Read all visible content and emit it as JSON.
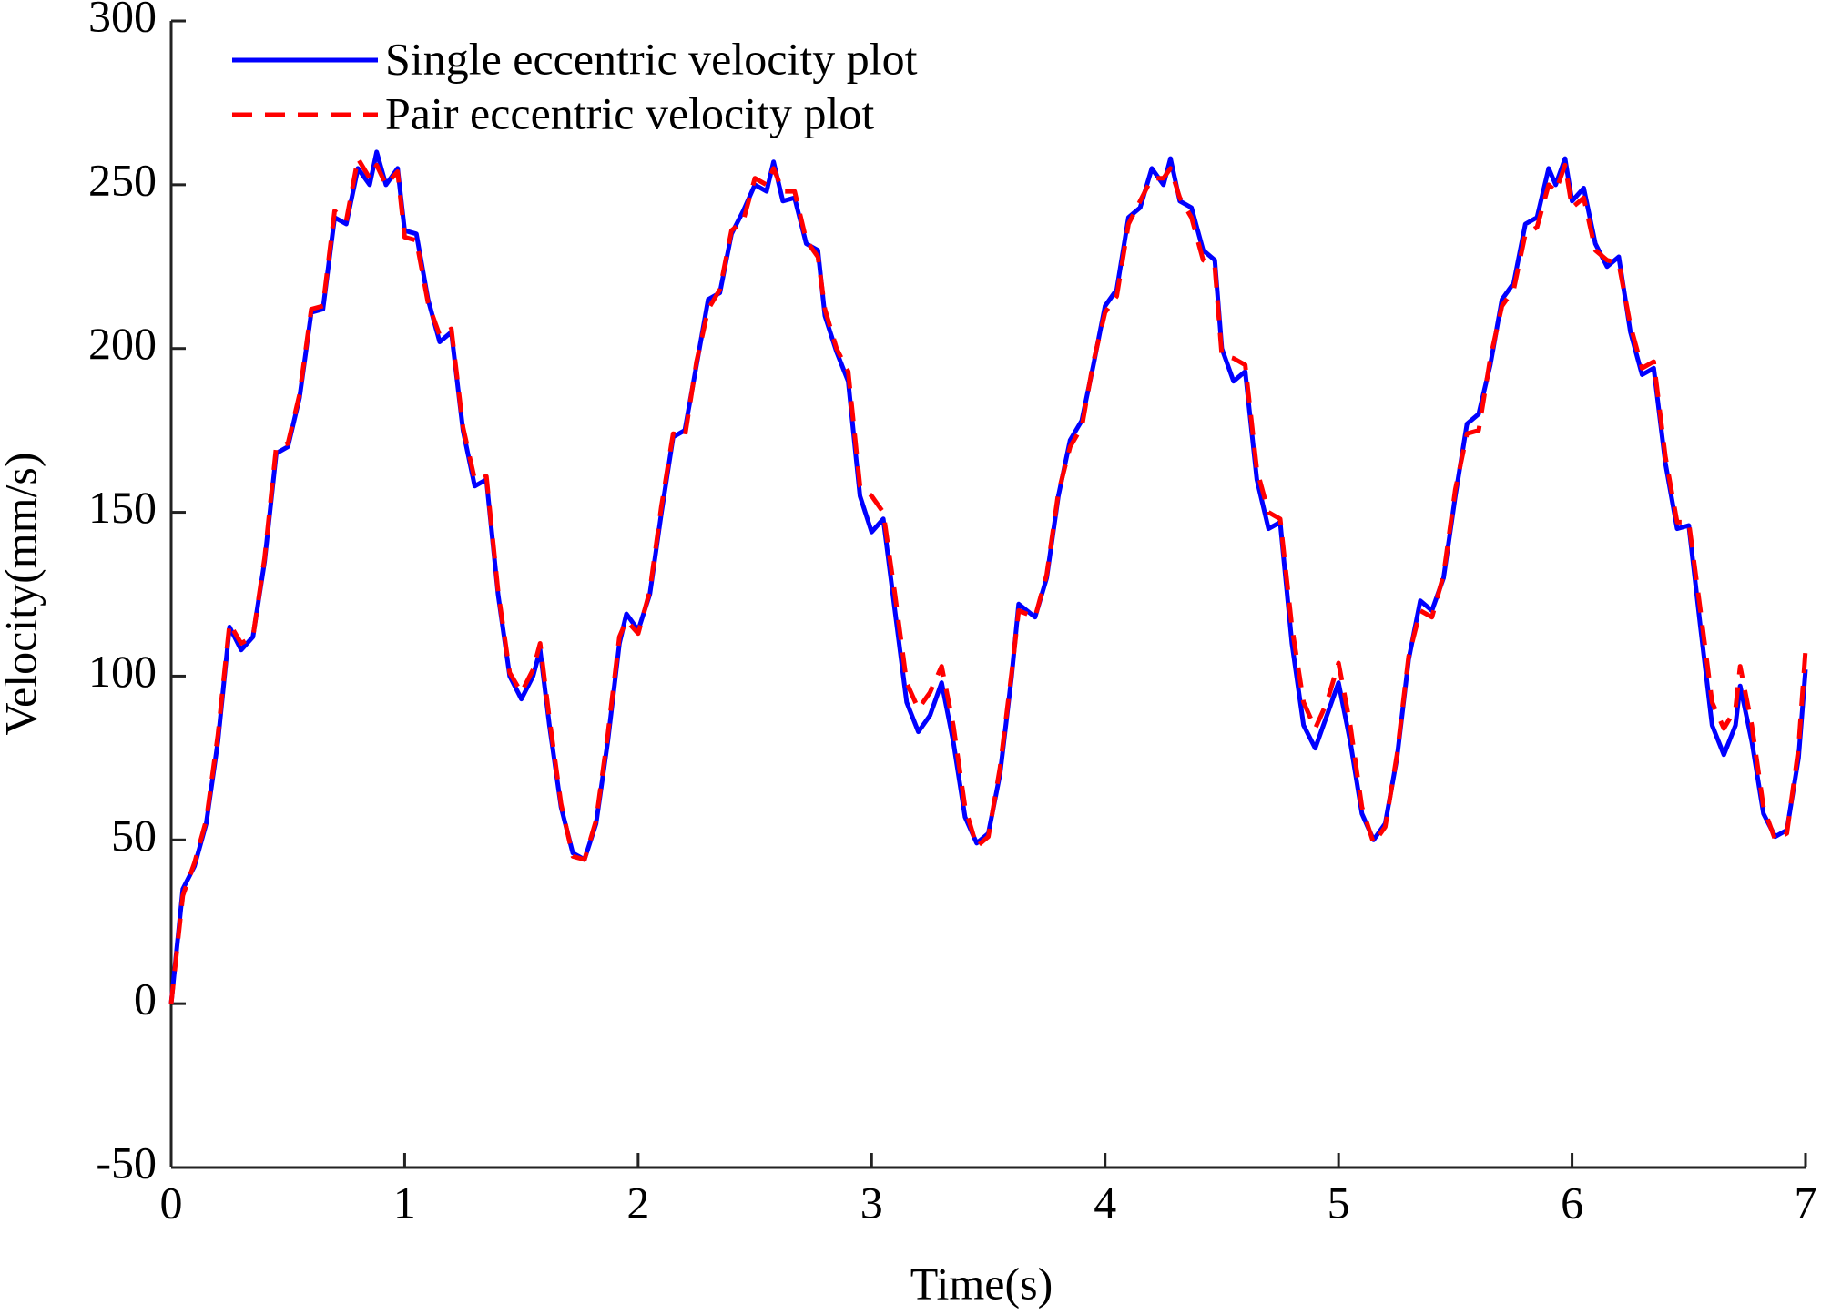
{
  "chart_data": {
    "type": "line",
    "xlabel": "Time(s)",
    "ylabel": "Velocity(mm/s)",
    "xlim": [
      0,
      7
    ],
    "xticks": [
      0,
      1,
      2,
      3,
      4,
      5,
      6,
      7
    ],
    "ylim": [
      -50,
      300
    ],
    "yticks": [
      -50,
      0,
      50,
      100,
      150,
      200,
      250,
      300
    ],
    "grid": false,
    "legend": "upper left",
    "x": [
      0,
      0.05,
      0.1,
      0.15,
      0.2,
      0.25,
      0.3,
      0.35,
      0.4,
      0.45,
      0.5,
      0.55,
      0.6,
      0.65,
      0.7,
      0.75,
      0.8,
      0.85,
      0.88,
      0.92,
      0.97,
      1.0,
      1.05,
      1.1,
      1.15,
      1.2,
      1.25,
      1.3,
      1.35,
      1.4,
      1.45,
      1.5,
      1.55,
      1.58,
      1.62,
      1.67,
      1.72,
      1.77,
      1.82,
      1.87,
      1.92,
      1.95,
      2.0,
      2.05,
      2.1,
      2.15,
      2.2,
      2.25,
      2.3,
      2.35,
      2.4,
      2.45,
      2.5,
      2.55,
      2.58,
      2.62,
      2.67,
      2.72,
      2.77,
      2.8,
      2.85,
      2.9,
      2.95,
      3.0,
      3.05,
      3.1,
      3.15,
      3.2,
      3.25,
      3.3,
      3.35,
      3.4,
      3.45,
      3.5,
      3.55,
      3.6,
      3.63,
      3.7,
      3.75,
      3.8,
      3.85,
      3.9,
      3.95,
      4.0,
      4.05,
      4.1,
      4.15,
      4.2,
      4.25,
      4.28,
      4.32,
      4.37,
      4.42,
      4.47,
      4.5,
      4.55,
      4.6,
      4.65,
      4.7,
      4.75,
      4.8,
      4.85,
      4.9,
      4.95,
      5.0,
      5.05,
      5.1,
      5.15,
      5.2,
      5.25,
      5.3,
      5.35,
      5.4,
      5.45,
      5.5,
      5.55,
      5.6,
      5.65,
      5.7,
      5.75,
      5.8,
      5.85,
      5.9,
      5.93,
      5.97,
      6.0,
      6.05,
      6.1,
      6.15,
      6.2,
      6.25,
      6.3,
      6.35,
      6.4,
      6.45,
      6.5,
      6.55,
      6.6,
      6.65,
      6.7,
      6.72,
      6.77,
      6.82,
      6.87,
      6.92,
      6.97,
      7.0
    ],
    "series": [
      {
        "name": "Single eccentric velocity plot",
        "color": "#0000ff",
        "style": "solid",
        "values": [
          0,
          35,
          42,
          55,
          80,
          115,
          108,
          112,
          135,
          168,
          170,
          185,
          211,
          212,
          240,
          238,
          255,
          250,
          260,
          250,
          255,
          236,
          235,
          215,
          202,
          205,
          175,
          158,
          160,
          125,
          100,
          93,
          100,
          108,
          85,
          60,
          46,
          44,
          55,
          80,
          110,
          119,
          114,
          125,
          150,
          173,
          175,
          195,
          215,
          217,
          235,
          242,
          250,
          248,
          257,
          245,
          246,
          232,
          230,
          210,
          199,
          190,
          155,
          144,
          148,
          120,
          92,
          83,
          88,
          98,
          80,
          57,
          49,
          52,
          70,
          100,
          122,
          118,
          130,
          155,
          172,
          178,
          195,
          213,
          218,
          240,
          243,
          255,
          250,
          258,
          245,
          243,
          230,
          227,
          200,
          190,
          193,
          160,
          145,
          147,
          110,
          85,
          78,
          88,
          98,
          80,
          58,
          50,
          55,
          75,
          105,
          123,
          120,
          130,
          155,
          177,
          180,
          195,
          215,
          220,
          238,
          240,
          255,
          250,
          258,
          245,
          249,
          232,
          225,
          228,
          205,
          192,
          194,
          165,
          145,
          146,
          115,
          85,
          76,
          85,
          97,
          80,
          58,
          51,
          53,
          75,
          102
        ]
      },
      {
        "name": "Pair eccentric velocity plot",
        "color": "#ff0000",
        "style": "dashed",
        "values": [
          0,
          33,
          43,
          56,
          82,
          116,
          110,
          112,
          136,
          170,
          171,
          186,
          212,
          213,
          242,
          239,
          258,
          252,
          256,
          250,
          254,
          234,
          233,
          214,
          204,
          206,
          176,
          160,
          161,
          126,
          101,
          95,
          102,
          110,
          87,
          61,
          45,
          44,
          56,
          82,
          112,
          117,
          113,
          126,
          152,
          174,
          173,
          196,
          212,
          218,
          236,
          239,
          252,
          250,
          255,
          248,
          248,
          233,
          228,
          212,
          200,
          193,
          158,
          155,
          150,
          125,
          98,
          90,
          95,
          103,
          85,
          60,
          48,
          51,
          72,
          101,
          120,
          118,
          131,
          156,
          170,
          176,
          196,
          211,
          216,
          238,
          245,
          252,
          252,
          255,
          246,
          240,
          227,
          225,
          198,
          197,
          195,
          163,
          150,
          148,
          115,
          92,
          84,
          92,
          104,
          85,
          60,
          49,
          54,
          76,
          106,
          120,
          118,
          131,
          157,
          174,
          175,
          197,
          213,
          218,
          235,
          237,
          250,
          248,
          256,
          243,
          246,
          230,
          227,
          226,
          207,
          194,
          196,
          167,
          147,
          147,
          120,
          92,
          84,
          90,
          103,
          85,
          60,
          50,
          52,
          78,
          108
        ]
      }
    ]
  }
}
